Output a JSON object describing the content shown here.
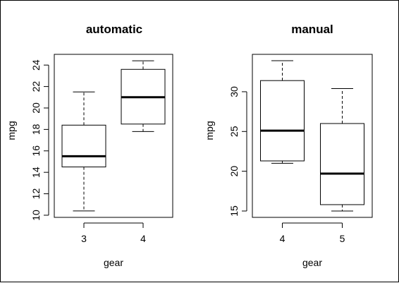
{
  "chart_data": [
    {
      "type": "boxplot",
      "title": "automatic",
      "xlabel": "gear",
      "ylabel": "mpg",
      "categories": [
        "3",
        "4"
      ],
      "ylim": [
        9.8,
        25.0
      ],
      "yticks": [
        10,
        12,
        14,
        16,
        18,
        20,
        22,
        24
      ],
      "boxes": [
        {
          "category": "3",
          "whisker_low": 10.4,
          "q1": 14.5,
          "median": 15.5,
          "q3": 18.4,
          "whisker_high": 21.5
        },
        {
          "category": "4",
          "whisker_low": 17.8,
          "q1": 18.5,
          "median": 21.0,
          "q3": 23.6,
          "whisker_high": 24.4
        }
      ]
    },
    {
      "type": "boxplot",
      "title": "manual",
      "xlabel": "gear",
      "ylabel": "mpg",
      "categories": [
        "4",
        "5"
      ],
      "ylim": [
        14.2,
        34.7
      ],
      "yticks": [
        15,
        20,
        25,
        30
      ],
      "boxes": [
        {
          "category": "4",
          "whisker_low": 21.0,
          "q1": 21.3,
          "median": 25.1,
          "q3": 31.4,
          "whisker_high": 33.9
        },
        {
          "category": "5",
          "whisker_low": 15.0,
          "q1": 15.8,
          "median": 19.7,
          "q3": 26.0,
          "whisker_high": 30.4
        }
      ]
    }
  ]
}
